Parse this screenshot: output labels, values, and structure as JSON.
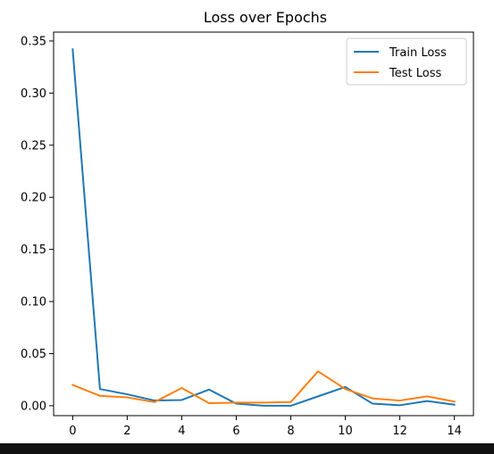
{
  "chart_data": {
    "type": "line",
    "title": "Loss over Epochs",
    "xlabel": "",
    "ylabel": "",
    "xlim": [
      -0.7,
      14.7
    ],
    "ylim": [
      -0.0095,
      0.3585
    ],
    "x_ticks": [
      0,
      2,
      4,
      6,
      8,
      10,
      12,
      14
    ],
    "x_tick_labels": [
      "0",
      "2",
      "4",
      "6",
      "8",
      "10",
      "12",
      "14"
    ],
    "y_ticks": [
      0.0,
      0.05,
      0.1,
      0.15,
      0.2,
      0.25,
      0.3,
      0.35
    ],
    "y_tick_labels": [
      "0.00",
      "0.05",
      "0.10",
      "0.15",
      "0.20",
      "0.25",
      "0.30",
      "0.35"
    ],
    "grid": false,
    "legend_position": "top-right",
    "x": [
      0,
      1,
      2,
      3,
      4,
      5,
      6,
      7,
      8,
      9,
      10,
      11,
      12,
      13,
      14
    ],
    "series": [
      {
        "name": "Train Loss",
        "color": "#1f77b4",
        "values": [
          0.342,
          0.016,
          0.011,
          0.005,
          0.0055,
          0.0155,
          0.002,
          0.0,
          0.0,
          0.009,
          0.018,
          0.002,
          0.0005,
          0.0045,
          0.001
        ]
      },
      {
        "name": "Test Loss",
        "color": "#ff7f0e",
        "values": [
          0.02,
          0.0095,
          0.008,
          0.0035,
          0.017,
          0.0025,
          0.003,
          0.003,
          0.0035,
          0.033,
          0.016,
          0.007,
          0.005,
          0.009,
          0.004
        ]
      }
    ]
  }
}
